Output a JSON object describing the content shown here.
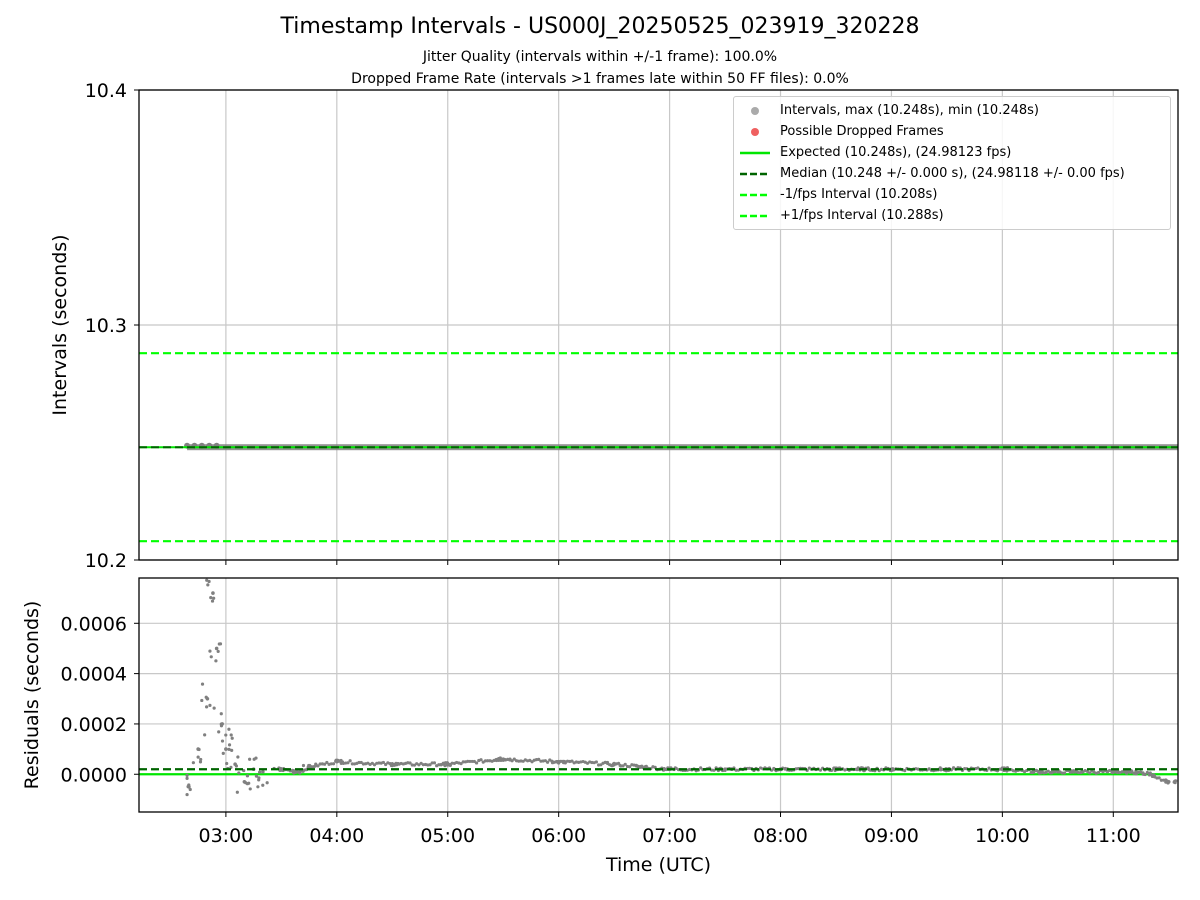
{
  "title": "Timestamp Intervals - US000J_20250525_023919_320228",
  "subtitle_jitter": "Jitter Quality (intervals within +/-1 frame): 100.0%",
  "subtitle_dropped": "Dropped Frame Rate (intervals >1 frames late within 50 FF files): 0.0%",
  "colors": {
    "intervals": "#808080",
    "dropped": "#e83b3b",
    "expected": "#00e600",
    "median": "#006400",
    "bounds": "#00ff00",
    "grid": "#c8c8c8"
  },
  "legend": [
    {
      "label": "Intervals, max (10.248s), min (10.248s)",
      "style": "dot-gray"
    },
    {
      "label": "Possible Dropped Frames",
      "style": "dot-red"
    },
    {
      "label": "Expected (10.248s), (24.98123 fps)",
      "style": "solid-green"
    },
    {
      "label": "Median (10.248 +/- 0.000 s), (24.98118 +/- 0.00 fps)",
      "style": "dash-darkgreen"
    },
    {
      "label": "-1/fps Interval (10.208s)",
      "style": "dash-green"
    },
    {
      "label": "+1/fps Interval (10.288s)",
      "style": "dash-green"
    }
  ],
  "chart_data": [
    {
      "type": "scatter",
      "ylabel": "Intervals (seconds)",
      "xlim": [
        "02:13",
        "11:35"
      ],
      "ylim": [
        10.2,
        10.4
      ],
      "yticks": [
        "10.2",
        "10.3",
        "10.4"
      ],
      "grid": true,
      "legend_position": "top-right",
      "reference_lines": {
        "expected": 10.248,
        "median": 10.248,
        "lower": 10.208,
        "upper": 10.288
      },
      "series": [
        {
          "name": "Intervals, max (10.248s), min (10.248s)",
          "x_range": [
            "02:39",
            "11:35"
          ],
          "value": 10.248
        },
        {
          "name": "Possible Dropped Frames",
          "points": []
        }
      ]
    },
    {
      "type": "scatter",
      "ylabel": "Residuals (seconds)",
      "xlabel": "Time (UTC)",
      "xlim": [
        "02:13",
        "11:35"
      ],
      "ylim": [
        -0.00015,
        0.00078
      ],
      "yticks": [
        "0.0000",
        "0.0002",
        "0.0004",
        "0.0006"
      ],
      "xticks": [
        "03:00",
        "04:00",
        "05:00",
        "06:00",
        "07:00",
        "08:00",
        "09:00",
        "10:00",
        "11:00"
      ],
      "grid": true,
      "reference_lines": {
        "expected": 0.0,
        "median": 2e-05
      },
      "series": [
        {
          "name": "Residuals",
          "x": [
            "02:40",
            "02:45",
            "02:50",
            "02:53",
            "02:55",
            "02:58",
            "03:00",
            "03:05",
            "03:10",
            "03:15",
            "03:20",
            "03:30",
            "03:40",
            "03:45",
            "04:00",
            "04:30",
            "05:00",
            "05:30",
            "06:00",
            "06:30",
            "06:45",
            "07:00",
            "07:30",
            "08:00",
            "08:30",
            "08:45",
            "09:00",
            "09:30",
            "10:00",
            "10:20",
            "10:30",
            "10:40",
            "11:00",
            "11:10",
            "11:20",
            "11:30"
          ],
          "values": [
            -5e-05,
            0.0001,
            0.0003,
            0.00072,
            0.0005,
            0.0002,
            0.0001,
            4e-05,
            -3e-05,
            2e-05,
            1e-05,
            2e-05,
            1e-05,
            3e-05,
            5e-05,
            4e-05,
            4e-05,
            6e-05,
            5e-05,
            4e-05,
            3e-05,
            2e-05,
            2e-05,
            2e-05,
            2e-05,
            2e-05,
            2e-05,
            2e-05,
            2e-05,
            1e-05,
            1e-05,
            1e-05,
            1e-05,
            1e-05,
            0.0,
            -3e-05
          ]
        }
      ]
    }
  ]
}
